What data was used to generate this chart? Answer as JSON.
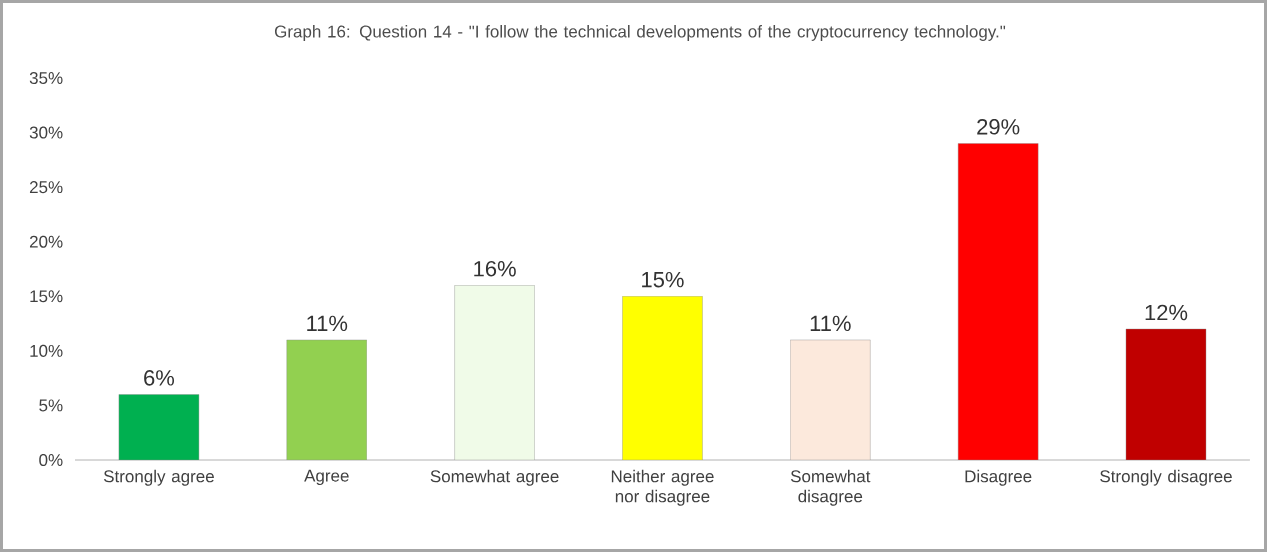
{
  "chart_data": {
    "type": "bar",
    "title": "Graph 16: Question 14 - \"I follow the technical developments of the cryptocurrency technology.\"",
    "categories": [
      "Strongly agree",
      "Agree",
      "Somewhat agree",
      "Neither agree nor disagree",
      "Somewhat disagree",
      "Disagree",
      "Strongly disagree"
    ],
    "values": [
      6,
      11,
      16,
      15,
      11,
      29,
      12
    ],
    "value_labels": [
      "6%",
      "11%",
      "16%",
      "15%",
      "11%",
      "29%",
      "12%"
    ],
    "colors": [
      "#00b050",
      "#92d050",
      "#f0fbe8",
      "#ffff00",
      "#fce9dc",
      "#ff0000",
      "#c00000"
    ],
    "ylim": [
      0,
      35
    ],
    "yticks": [
      {
        "value": 0,
        "label": "0%"
      },
      {
        "value": 5,
        "label": "5%"
      },
      {
        "value": 10,
        "label": "10%"
      },
      {
        "value": 15,
        "label": "15%"
      },
      {
        "value": 20,
        "label": "20%"
      },
      {
        "value": 25,
        "label": "25%"
      },
      {
        "value": 30,
        "label": "30%"
      },
      {
        "value": 35,
        "label": "35%"
      }
    ],
    "grid": false
  }
}
